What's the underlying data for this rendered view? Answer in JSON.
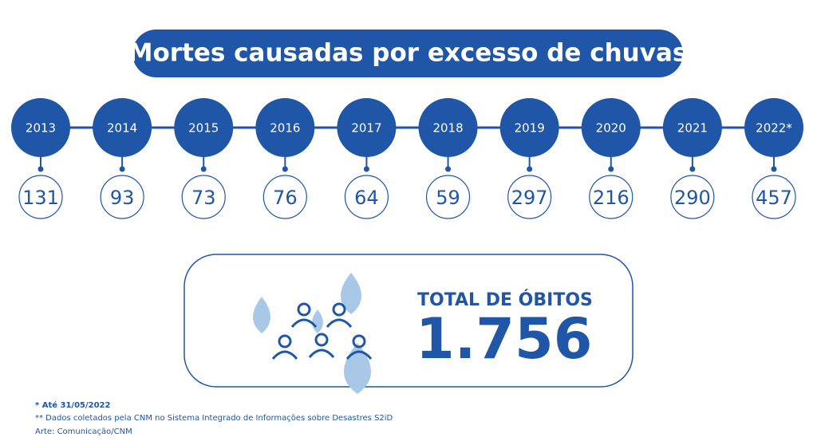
{
  "header": {
    "title": "Mortes causadas por excesso de chuvas"
  },
  "timeline": {
    "items": [
      {
        "year": "2013",
        "value": "131"
      },
      {
        "year": "2014",
        "value": "93"
      },
      {
        "year": "2015",
        "value": "73"
      },
      {
        "year": "2016",
        "value": "76"
      },
      {
        "year": "2017",
        "value": "64"
      },
      {
        "year": "2018",
        "value": "59"
      },
      {
        "year": "2019",
        "value": "297"
      },
      {
        "year": "2020",
        "value": "216"
      },
      {
        "year": "2021",
        "value": "290"
      },
      {
        "year": "2022*",
        "value": "457"
      }
    ]
  },
  "total": {
    "label": "TOTAL DE ÓBITOS",
    "value": "1.756"
  },
  "footnotes": [
    "* Até 31/05/2022",
    "** Dados coletados pela CNM no Sistema Integrado de Informações sobre Desastres S2iD",
    "Arte: Comunicação/CNM"
  ]
}
